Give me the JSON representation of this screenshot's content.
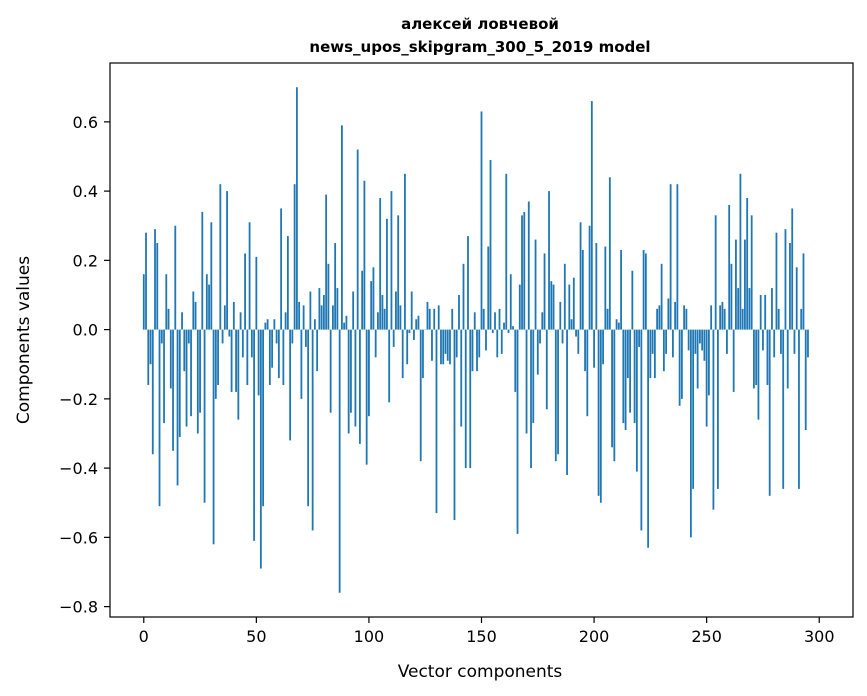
{
  "chart_data": {
    "type": "bar",
    "title_line1": "алексей ловчевой",
    "title_line2": "news_upos_skipgram_300_5_2019 model",
    "xlabel": "Vector components",
    "ylabel": "Components values",
    "xlim": [
      -15,
      315
    ],
    "ylim": [
      -0.83,
      0.77
    ],
    "xticks": [
      0,
      50,
      100,
      150,
      200,
      250,
      300
    ],
    "xtick_labels": [
      "0",
      "50",
      "100",
      "150",
      "200",
      "250",
      "300"
    ],
    "yticks": [
      -0.8,
      -0.6,
      -0.4,
      -0.2,
      0.0,
      0.2,
      0.4,
      0.6
    ],
    "ytick_labels": [
      "−0.8",
      "−0.6",
      "−0.4",
      "−0.2",
      "0.0",
      "0.2",
      "0.4",
      "0.6"
    ],
    "bar_color": "#1f77b4",
    "grid": false,
    "values": [
      0.16,
      0.28,
      -0.16,
      -0.1,
      -0.36,
      0.29,
      0.25,
      -0.51,
      -0.04,
      -0.27,
      0.16,
      0.06,
      -0.17,
      -0.35,
      0.3,
      -0.45,
      -0.31,
      0.05,
      -0.12,
      -0.28,
      -0.04,
      -0.25,
      0.11,
      0.08,
      -0.3,
      -0.24,
      0.34,
      -0.5,
      0.16,
      0.13,
      0.31,
      -0.62,
      -0.2,
      -0.16,
      0.42,
      -0.04,
      0.07,
      0.4,
      -0.02,
      -0.18,
      0.08,
      -0.18,
      -0.26,
      0.05,
      -0.08,
      0.22,
      -0.16,
      0.31,
      -0.08,
      -0.61,
      0.21,
      -0.19,
      -0.69,
      -0.51,
      0.02,
      0.03,
      -0.16,
      -0.11,
      0.03,
      -0.04,
      -0.14,
      0.35,
      -0.16,
      0.05,
      0.27,
      -0.32,
      -0.04,
      0.42,
      0.7,
      0.08,
      -0.2,
      0.07,
      -0.05,
      -0.51,
      0.11,
      -0.58,
      0.03,
      -0.12,
      0.12,
      0.07,
      0.1,
      0.39,
      0.19,
      -0.24,
      0.07,
      0.25,
      0.12,
      -0.76,
      0.59,
      0.02,
      0.04,
      -0.3,
      -0.24,
      0.11,
      -0.28,
      0.52,
      -0.33,
      0.17,
      0.43,
      -0.39,
      -0.25,
      0.14,
      0.18,
      -0.08,
      0.05,
      0.38,
      0.1,
      0.06,
      0.32,
      -0.21,
      0.4,
      -0.05,
      0.11,
      0.33,
      0.07,
      -0.14,
      0.45,
      -0.1,
      -0.01,
      0.11,
      -0.03,
      0.03,
      0.04,
      -0.38,
      -0.14,
      0.0,
      0.08,
      0.06,
      -0.09,
      0.06,
      -0.53,
      0.07,
      -0.1,
      -0.1,
      -0.07,
      -0.09,
      -0.1,
      0.06,
      -0.55,
      -0.08,
      0.1,
      -0.28,
      0.19,
      -0.4,
      0.27,
      -0.4,
      -0.12,
      0.05,
      -0.12,
      -0.08,
      0.63,
      0.06,
      -0.06,
      0.24,
      0.49,
      -0.01,
      0.05,
      -0.08,
      0.06,
      -0.07,
      0.02,
      0.45,
      -0.01,
      0.16,
      0.01,
      -0.18,
      -0.59,
      0.13,
      0.33,
      0.34,
      -0.3,
      0.37,
      -0.4,
      -0.27,
      0.26,
      -0.13,
      -0.04,
      0.05,
      0.22,
      -0.23,
      0.4,
      0.14,
      0.13,
      -0.38,
      -0.36,
      0.08,
      -0.04,
      0.19,
      -0.42,
      0.13,
      0.03,
      0.15,
      -0.02,
      -0.07,
      0.31,
      0.23,
      -0.12,
      -0.25,
      0.3,
      0.66,
      -0.11,
      0.25,
      -0.48,
      -0.5,
      -0.1,
      0.24,
      0.06,
      0.44,
      -0.34,
      -0.38,
      0.03,
      0.02,
      0.23,
      -0.27,
      -0.29,
      -0.14,
      -0.24,
      0.17,
      -0.27,
      -0.41,
      -0.05,
      -0.58,
      0.23,
      0.22,
      -0.63,
      -0.14,
      -0.07,
      -0.14,
      0.06,
      0.07,
      0.19,
      -0.12,
      -0.07,
      0.09,
      0.42,
      -0.08,
      0.08,
      0.42,
      -0.22,
      -0.2,
      0.07,
      0.06,
      -0.06,
      -0.6,
      -0.46,
      -0.07,
      -0.17,
      -0.04,
      -0.06,
      -0.09,
      -0.28,
      -0.19,
      0.07,
      -0.52,
      0.33,
      -0.46,
      0.07,
      0.08,
      0.06,
      -0.07,
      0.36,
      0.19,
      -0.18,
      0.26,
      0.12,
      0.45,
      0.06,
      0.26,
      0.38,
      0.12,
      0.33,
      -0.17,
      -0.16,
      -0.26,
      0.1,
      -0.06,
      0.1,
      -0.16,
      -0.48,
      0.12,
      -0.08,
      0.28,
      0.06,
      -0.07,
      -0.46,
      0.29,
      -0.17,
      0.25,
      0.35,
      -0.07,
      0.18,
      -0.46,
      0.06,
      0.22,
      -0.29,
      -0.08
    ]
  }
}
